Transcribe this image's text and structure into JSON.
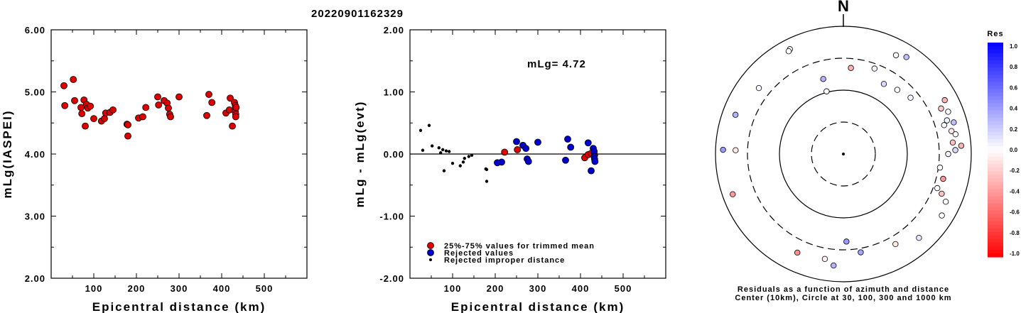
{
  "title": "20220901162329",
  "chart_data": [
    {
      "type": "scatter",
      "xlabel": "Epicentral distance (km)",
      "ylabel": "mLg(IASPEI)",
      "xlim": [
        0,
        600
      ],
      "ylim": [
        2.0,
        6.0
      ],
      "xticks": [
        "100",
        "200",
        "300",
        "400",
        "500"
      ],
      "yticks": [
        "2.00",
        "3.00",
        "4.00",
        "5.00",
        "6.00"
      ],
      "series": [
        {
          "color": "#dd0000",
          "points": [
            [
              30,
              5.1
            ],
            [
              32,
              4.78
            ],
            [
              52,
              5.2
            ],
            [
              55,
              4.86
            ],
            [
              70,
              4.75
            ],
            [
              72,
              4.65
            ],
            [
              77,
              4.87
            ],
            [
              80,
              4.45
            ],
            [
              83,
              4.8
            ],
            [
              86,
              4.74
            ],
            [
              92,
              4.77
            ],
            [
              100,
              4.57
            ],
            [
              118,
              4.53
            ],
            [
              125,
              4.57
            ],
            [
              128,
              4.66
            ],
            [
              138,
              4.67
            ],
            [
              145,
              4.71
            ],
            [
              178,
              4.48
            ],
            [
              180,
              4.47
            ],
            [
              180,
              4.29
            ],
            [
              205,
              4.58
            ],
            [
              215,
              4.6
            ],
            [
              222,
              4.75
            ],
            [
              250,
              4.92
            ],
            [
              252,
              4.79
            ],
            [
              265,
              4.86
            ],
            [
              272,
              4.82
            ],
            [
              275,
              4.74
            ],
            [
              278,
              4.64
            ],
            [
              280,
              4.6
            ],
            [
              300,
              4.92
            ],
            [
              365,
              4.62
            ],
            [
              370,
              4.96
            ],
            [
              377,
              4.83
            ],
            [
              410,
              4.66
            ],
            [
              418,
              4.71
            ],
            [
              420,
              4.9
            ],
            [
              425,
              4.45
            ],
            [
              430,
              4.83
            ],
            [
              432,
              4.78
            ],
            [
              432,
              4.73
            ],
            [
              432,
              4.68
            ],
            [
              433,
              4.64
            ],
            [
              433,
              4.6
            ],
            [
              434,
              4.75
            ]
          ]
        }
      ]
    },
    {
      "type": "scatter",
      "xlabel": "Epicentral distance (km)",
      "ylabel": "mLg - mLg(evt)",
      "xlim": [
        0,
        600
      ],
      "ylim": [
        -2.0,
        2.0
      ],
      "xticks": [
        "100",
        "200",
        "300",
        "400",
        "500"
      ],
      "yticks": [
        "-2.00",
        "-1.00",
        "0.00",
        "1.00",
        "2.00"
      ],
      "annotation": "mLg= 4.72",
      "hline": 0,
      "series": [
        {
          "name": "25%-75% values for trimmed mean",
          "color": "#dd0000",
          "marker": "circle",
          "points": [
            [
              222,
              0.03
            ],
            [
              252,
              0.07
            ],
            [
              410,
              -0.06
            ],
            [
              418,
              -0.01
            ],
            [
              425,
              0.01
            ],
            [
              432,
              0.04
            ],
            [
              433,
              -0.02
            ]
          ]
        },
        {
          "name": "Rejected values",
          "color": "#0000cc",
          "marker": "circle",
          "points": [
            [
              205,
              -0.14
            ],
            [
              215,
              -0.13
            ],
            [
              250,
              0.2
            ],
            [
              265,
              0.14
            ],
            [
              272,
              0.09
            ],
            [
              275,
              -0.08
            ],
            [
              278,
              -0.12
            ],
            [
              300,
              0.19
            ],
            [
              365,
              -0.1
            ],
            [
              370,
              0.24
            ],
            [
              377,
              0.11
            ],
            [
              418,
              0.18
            ],
            [
              425,
              -0.27
            ],
            [
              430,
              0.09
            ],
            [
              432,
              0.04
            ],
            [
              432,
              -0.04
            ],
            [
              433,
              -0.08
            ],
            [
              434,
              -0.12
            ]
          ]
        },
        {
          "name": "Rejected improper distance",
          "color": "#000000",
          "marker": "dot",
          "points": [
            [
              25,
              0.38
            ],
            [
              30,
              0.06
            ],
            [
              45,
              0.46
            ],
            [
              52,
              0.13
            ],
            [
              68,
              0.1
            ],
            [
              72,
              0.02
            ],
            [
              77,
              0.07
            ],
            [
              80,
              -0.27
            ],
            [
              85,
              0.05
            ],
            [
              92,
              0.04
            ],
            [
              100,
              -0.15
            ],
            [
              118,
              -0.19
            ],
            [
              125,
              -0.13
            ],
            [
              128,
              -0.07
            ],
            [
              138,
              -0.04
            ],
            [
              145,
              -0.02
            ],
            [
              178,
              -0.24
            ],
            [
              180,
              -0.25
            ],
            [
              180,
              -0.44
            ]
          ]
        }
      ]
    },
    {
      "type": "scatter",
      "subtype": "polar",
      "north_label": "N",
      "caption_line1": "Residuals as a function of azimuth and distance",
      "caption_line2": "Center (10km), Circle at 30, 100, 300 and 1000 km",
      "colorbar": {
        "title": "Res",
        "ticks": [
          "1.0",
          "0.8",
          "0.6",
          "0.4",
          "0.2",
          "0.0",
          "-0.2",
          "-0.4",
          "-0.6",
          "-0.8",
          "-1.0"
        ]
      },
      "points": [
        {
          "az": 333,
          "dist": 690,
          "res": 0.0
        },
        {
          "az": 332,
          "dist": 660,
          "res": 0.0
        },
        {
          "az": 33,
          "dist": 640,
          "res": 0.25
        },
        {
          "az": 28,
          "dist": 560,
          "res": 0.02
        },
        {
          "az": 308,
          "dist": 470,
          "res": 0.03
        },
        {
          "az": 290,
          "dist": 620,
          "res": 0.3
        },
        {
          "az": 272,
          "dist": 480,
          "res": -0.1
        },
        {
          "az": 5,
          "dist": 220,
          "res": -0.3
        },
        {
          "az": 345,
          "dist": 160,
          "res": 0.3
        },
        {
          "az": 20,
          "dist": 260,
          "res": 0.05
        },
        {
          "az": 40,
          "dist": 200,
          "res": 0.0
        },
        {
          "az": 30,
          "dist": 180,
          "res": 0.15
        },
        {
          "az": 50,
          "dist": 230,
          "res": 0.05
        },
        {
          "az": 345,
          "dist": 100,
          "res": 0.0
        },
        {
          "az": 65,
          "dist": 480,
          "res": -0.2
        },
        {
          "az": 62,
          "dist": 620,
          "res": -0.3
        },
        {
          "az": 68,
          "dist": 580,
          "res": 0.02
        },
        {
          "az": 72,
          "dist": 500,
          "res": 0.05
        },
        {
          "az": 74,
          "dist": 430,
          "res": 0.02
        },
        {
          "az": 78,
          "dist": 530,
          "res": -0.1
        },
        {
          "az": 80,
          "dist": 600,
          "res": 0.02
        },
        {
          "az": 74,
          "dist": 620,
          "res": 0.25
        },
        {
          "az": 84,
          "dist": 520,
          "res": -0.25
        },
        {
          "az": 86,
          "dist": 700,
          "res": -0.3
        },
        {
          "az": 88,
          "dist": 560,
          "res": 0.15
        },
        {
          "az": 98,
          "dist": 330,
          "res": 0.0
        },
        {
          "az": 90,
          "dist": 430,
          "res": 0.05
        },
        {
          "az": 104,
          "dist": 400,
          "res": -0.4
        },
        {
          "az": 110,
          "dist": 360,
          "res": 0.0
        },
        {
          "az": 112,
          "dist": 450,
          "res": -0.25
        },
        {
          "az": 115,
          "dist": 580,
          "res": 0.0
        },
        {
          "az": 122,
          "dist": 650,
          "res": 0.0
        },
        {
          "az": 150,
          "dist": 420,
          "res": -0.1
        },
        {
          "az": 138,
          "dist": 580,
          "res": 0.1
        },
        {
          "az": 178,
          "dist": 230,
          "res": 0.4
        },
        {
          "az": 170,
          "dist": 360,
          "res": 0.35
        },
        {
          "az": 190,
          "dist": 460,
          "res": -0.05
        },
        {
          "az": 185,
          "dist": 560,
          "res": 0.3
        },
        {
          "az": 205,
          "dist": 500,
          "res": -0.45
        },
        {
          "az": 272,
          "dist": 760,
          "res": 0.4
        },
        {
          "az": 250,
          "dist": 690,
          "res": -0.4
        }
      ]
    }
  ]
}
